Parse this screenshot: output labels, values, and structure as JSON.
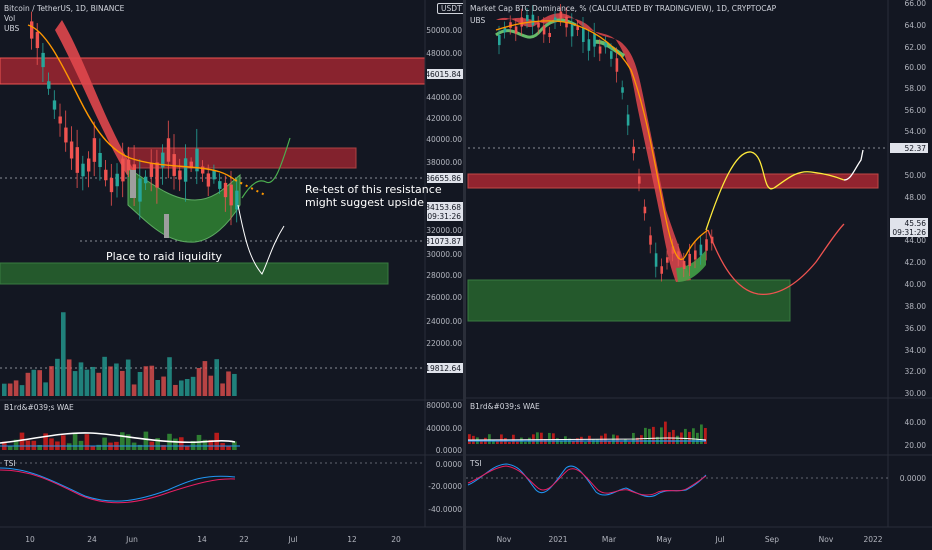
{
  "left": {
    "header": {
      "symbol": "Bitcoin / TetherUS, 1D, BINANCE",
      "vol": "Vol",
      "ubs": "UBS",
      "quote_button": "USDT"
    },
    "price_axis": [
      "50000.00",
      "48000.00",
      "44000.00",
      "42000.00",
      "40000.00",
      "38000.00",
      "32000.00",
      "30000.00",
      "28000.00",
      "26000.00",
      "24000.00",
      "22000.00"
    ],
    "price_tags": [
      {
        "value": "46015.84",
        "style": "light"
      },
      {
        "value": "36655.86",
        "style": "light"
      },
      {
        "value": "34153.68",
        "style": "light"
      },
      {
        "value": "09:31:26",
        "style": "light"
      },
      {
        "value": "31073.87",
        "style": "light"
      },
      {
        "value": "19812.64",
        "style": "light"
      }
    ],
    "annotations": {
      "retest_line1": "Re-test of this resistance",
      "retest_line2": "might suggest upside",
      "raid": "Place to raid liquidity"
    },
    "wae": {
      "label": "B1rd&#039;s WAE",
      "axis": [
        "80000.00",
        "40000.00",
        "0.0000"
      ]
    },
    "tsi": {
      "label": "TSI",
      "axis": [
        "0.0000",
        "-20.0000",
        "-40.0000"
      ]
    },
    "time_axis": [
      "10",
      "24",
      "Jun",
      "14",
      "22",
      "Jul",
      "12",
      "20"
    ]
  },
  "right": {
    "header": {
      "title": "Market Cap BTC Dominance, % (CALCULATED BY TRADINGVIEW), 1D, CRYPTOCAP",
      "ubs": "UBS"
    },
    "price_axis": [
      "66.00",
      "64.00",
      "62.00",
      "60.00",
      "58.00",
      "56.00",
      "54.00",
      "50.00",
      "48.00",
      "44.00",
      "42.00",
      "40.00",
      "38.00",
      "36.00",
      "34.00",
      "32.00",
      "30.00"
    ],
    "price_tags": [
      {
        "value": "52.37",
        "style": "light"
      },
      {
        "value": "45.56",
        "style": "light"
      },
      {
        "value": "09:31:26",
        "style": "light"
      }
    ],
    "wae": {
      "label": "B1rd&#039;s WAE",
      "axis": [
        "40.00",
        "20.00"
      ]
    },
    "tsi": {
      "label": "TSI",
      "axis": [
        "0.0000"
      ]
    },
    "time_axis": [
      "Nov",
      "2021",
      "Mar",
      "May",
      "Jul",
      "Sep",
      "Nov",
      "2022"
    ]
  },
  "colors": {
    "bg": "#131722",
    "bull": "#26a69a",
    "bear": "#ef5350",
    "resistance": "#b22833",
    "support": "#2e7d32",
    "ribbon_red": "#e0474c",
    "ribbon_green": "#43a047",
    "orange": "#ff9800",
    "yellow": "#ffeb3b"
  }
}
